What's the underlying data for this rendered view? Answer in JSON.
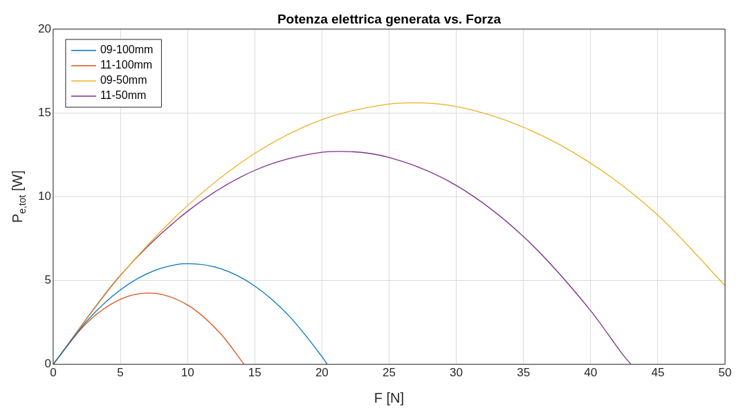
{
  "chart_data": {
    "type": "line",
    "title": "Potenza elettrica generata vs. Forza",
    "xlabel": "F [N]",
    "ylabel": "P$_{e,tot}$ [W]",
    "xlim": [
      0,
      50
    ],
    "xticks": [
      0,
      5,
      10,
      15,
      20,
      25,
      30,
      35,
      40,
      45,
      50
    ],
    "ylim": [
      0,
      20
    ],
    "yticks": [
      0,
      5,
      10,
      15,
      20
    ],
    "grid": true,
    "legend": "top left",
    "marker": "none",
    "line_style": "solid",
    "series": [
      {
        "name": "09-100mm",
        "color": "#0072bd",
        "x": [
          0,
          2.5,
          5,
          7.5,
          10,
          12.5,
          15,
          17.5,
          20,
          20.4
        ],
        "values": [
          0,
          2.58,
          4.44,
          5.58,
          6.0,
          5.69,
          4.67,
          2.93,
          0.46,
          0
        ]
      },
      {
        "name": "11-100mm",
        "color": "#d95319",
        "x": [
          0,
          2.5,
          5,
          7.1,
          10,
          12.5,
          14.2
        ],
        "values": [
          0,
          2.47,
          3.88,
          4.25,
          3.54,
          1.79,
          0
        ]
      },
      {
        "name": "09-50mm",
        "color": "#edb120",
        "x": [
          0,
          5,
          10,
          15,
          20,
          25,
          26.8,
          30,
          35,
          40,
          45,
          50
        ],
        "values": [
          0,
          5.28,
          9.47,
          12.58,
          14.6,
          15.53,
          15.6,
          15.38,
          14.14,
          12.0,
          8.9,
          4.7
        ]
      },
      {
        "name": "11-50mm",
        "color": "#7e2f8e",
        "x": [
          0,
          5,
          10,
          15,
          20,
          21.4,
          25,
          30,
          35,
          40,
          42.5,
          43
        ],
        "values": [
          0,
          5.31,
          9.13,
          11.57,
          12.65,
          12.7,
          12.34,
          10.67,
          7.62,
          3.2,
          0.47,
          0
        ]
      }
    ]
  }
}
